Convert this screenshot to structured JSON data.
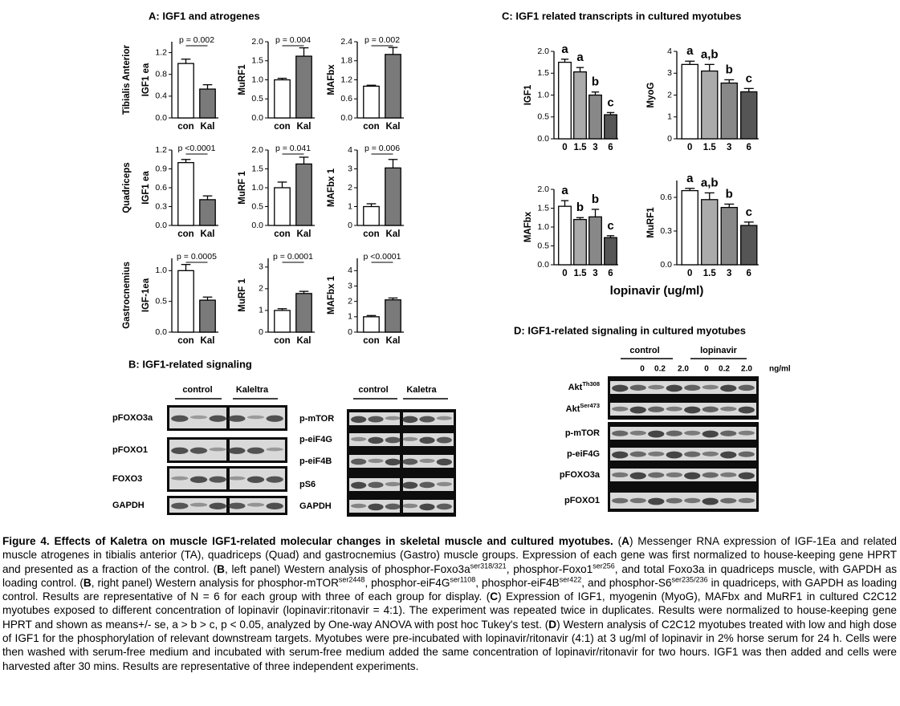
{
  "figure": {
    "panel_a": {
      "title": "A: IGF1 and atrogenes",
      "row_labels": [
        "Tibialis Anterior",
        "Quadriceps",
        "Gastrocnemius"
      ]
    },
    "panel_b": {
      "title": "B: IGF1-related signaling",
      "left": {
        "groups": [
          "control",
          "Kaleltra"
        ],
        "rows": [
          "pFOXO3a",
          "pFOXO1",
          "FOXO3",
          "GAPDH"
        ]
      },
      "right": {
        "groups": [
          "control",
          "Kaletra"
        ],
        "rows": [
          "p-mTOR",
          "p-eiF4G",
          "p-eiF4B",
          "pS6",
          "GAPDH"
        ]
      }
    },
    "panel_c": {
      "title": "C: IGF1 related transcripts in cultured myotubes",
      "x_label": "lopinavir (ug/ml)"
    },
    "panel_d": {
      "title": "D: IGF1-related signaling in cultured myotubes",
      "groups": [
        "control",
        "lopinavir"
      ],
      "doses": [
        "0",
        "0.2",
        "2.0",
        "0",
        "0.2",
        "2.0"
      ],
      "unit": "ng/ml",
      "rows": [
        {
          "text": "Akt",
          "sup": "Th308"
        },
        {
          "text": "Akt",
          "sup": "Ser473"
        },
        {
          "text": "p-mTOR"
        },
        {
          "text": "p-eiF4G"
        },
        {
          "text": "pFOXO3a"
        },
        {
          "text": "pFOXO1"
        }
      ]
    }
  },
  "chart_data": [
    {
      "type": "bar",
      "y_label": "IGF1 ea",
      "categories": [
        "con",
        "Kal"
      ],
      "values": [
        1.0,
        0.53
      ],
      "errors": [
        0.08,
        0.08
      ],
      "colors": [
        "#ffffff",
        "#7a7a7a"
      ],
      "ylim": [
        0,
        1.4
      ],
      "yticks": [
        {
          "value": 0,
          "label": "0.0"
        },
        0.4,
        0.8,
        1.2
      ],
      "annotation": "p = 0.002"
    },
    {
      "type": "bar",
      "y_label": "MuRF1",
      "categories": [
        "con",
        "Kal"
      ],
      "values": [
        1.0,
        1.62
      ],
      "errors": [
        0.04,
        0.22
      ],
      "colors": [
        "#ffffff",
        "#7a7a7a"
      ],
      "ylim": [
        0,
        2.0
      ],
      "yticks": [
        {
          "value": 0,
          "label": "0.0"
        },
        0.5,
        {
          "value": 1,
          "label": "1.0"
        },
        1.5,
        {
          "value": 2,
          "label": "2.0"
        }
      ],
      "annotation": "p = 0.004"
    },
    {
      "type": "bar",
      "y_label": "MAFbx",
      "categories": [
        "con",
        "Kal"
      ],
      "values": [
        1.0,
        2.0
      ],
      "errors": [
        0.03,
        0.22
      ],
      "colors": [
        "#ffffff",
        "#7a7a7a"
      ],
      "ylim": [
        0,
        2.4
      ],
      "yticks": [
        {
          "value": 0,
          "label": "0.0"
        },
        0.6,
        1.2,
        1.8,
        2.4
      ],
      "annotation": "p = 0.002"
    },
    {
      "type": "bar",
      "y_label": "IGF1 ea",
      "categories": [
        "con",
        "Kal"
      ],
      "values": [
        1.0,
        0.41
      ],
      "errors": [
        0.05,
        0.06
      ],
      "colors": [
        "#ffffff",
        "#7a7a7a"
      ],
      "ylim": [
        0,
        1.2
      ],
      "yticks": [
        {
          "value": 0,
          "label": "0.0"
        },
        0.3,
        0.6,
        0.9,
        1.2
      ],
      "annotation": "p <0.0001"
    },
    {
      "type": "bar",
      "y_label": "MuRF 1",
      "categories": [
        "con",
        "Kal"
      ],
      "values": [
        1.0,
        1.63
      ],
      "errors": [
        0.15,
        0.18
      ],
      "colors": [
        "#ffffff",
        "#7a7a7a"
      ],
      "ylim": [
        0,
        2.0
      ],
      "yticks": [
        {
          "value": 0,
          "label": "0.0"
        },
        0.5,
        {
          "value": 1,
          "label": "1.0"
        },
        1.5,
        {
          "value": 2,
          "label": "2.0"
        }
      ],
      "annotation": "p = 0.041"
    },
    {
      "type": "bar",
      "y_label": "MAFbx 1",
      "categories": [
        "con",
        "Kal"
      ],
      "values": [
        1.0,
        3.05
      ],
      "errors": [
        0.15,
        0.45
      ],
      "colors": [
        "#ffffff",
        "#7a7a7a"
      ],
      "ylim": [
        0,
        4
      ],
      "yticks": [
        0,
        1,
        2,
        3,
        4
      ],
      "annotation": "p = 0.006"
    },
    {
      "type": "bar",
      "y_label": "IGF-1ea",
      "categories": [
        "con",
        "Kal"
      ],
      "values": [
        1.0,
        0.52
      ],
      "errors": [
        0.1,
        0.05
      ],
      "colors": [
        "#ffffff",
        "#7a7a7a"
      ],
      "ylim": [
        0,
        1.2
      ],
      "yticks": [
        {
          "value": 0,
          "label": "0.0"
        },
        0.5,
        {
          "value": 1,
          "label": "1.0"
        }
      ],
      "annotation": "p = 0.0005"
    },
    {
      "type": "bar",
      "y_label": "MuRF 1",
      "categories": [
        "con",
        "Kal"
      ],
      "values": [
        1.0,
        1.78
      ],
      "errors": [
        0.08,
        0.1
      ],
      "colors": [
        "#ffffff",
        "#7a7a7a"
      ],
      "ylim": [
        0,
        3.4
      ],
      "yticks": [
        0,
        1,
        2,
        3
      ],
      "annotation": "p = 0.0001"
    },
    {
      "type": "bar",
      "y_label": "MAFbx 1",
      "categories": [
        "con",
        "Kal"
      ],
      "values": [
        1.0,
        2.1
      ],
      "errors": [
        0.08,
        0.12
      ],
      "colors": [
        "#ffffff",
        "#7a7a7a"
      ],
      "ylim": [
        0,
        4.8
      ],
      "yticks": [
        0,
        1,
        2,
        3,
        4
      ],
      "annotation": "p <0.0001"
    },
    {
      "type": "bar",
      "y_label": "IGF1",
      "categories": [
        "0",
        "1.5",
        "3",
        "6"
      ],
      "values": [
        1.75,
        1.53,
        1.0,
        0.55
      ],
      "errors": [
        0.07,
        0.1,
        0.07,
        0.05
      ],
      "colors": [
        "#ffffff",
        "#ababab",
        "#888888",
        "#555555"
      ],
      "ylim": [
        0,
        2.0
      ],
      "yticks": [
        {
          "value": 0,
          "label": "0.0"
        },
        0.5,
        {
          "value": 1,
          "label": "1.0"
        },
        1.5,
        {
          "value": 2,
          "label": "2.0"
        }
      ],
      "letters": [
        "a",
        "a",
        "b",
        "c"
      ]
    },
    {
      "type": "bar",
      "y_label": "MyoG",
      "categories": [
        "0",
        "1.5",
        "3",
        "6"
      ],
      "values": [
        3.4,
        3.1,
        2.55,
        2.15
      ],
      "errors": [
        0.15,
        0.3,
        0.15,
        0.15
      ],
      "colors": [
        "#ffffff",
        "#ababab",
        "#888888",
        "#555555"
      ],
      "ylim": [
        0,
        4
      ],
      "yticks": [
        0,
        1,
        2,
        3,
        4
      ],
      "letters": [
        "a",
        "a,b",
        "b",
        "c"
      ]
    },
    {
      "type": "bar",
      "y_label": "MAFbx",
      "categories": [
        "0",
        "1.5",
        "3",
        "6"
      ],
      "values": [
        1.55,
        1.2,
        1.27,
        0.72
      ],
      "errors": [
        0.15,
        0.05,
        0.2,
        0.05
      ],
      "colors": [
        "#ffffff",
        "#ababab",
        "#888888",
        "#555555"
      ],
      "ylim": [
        0,
        2.0
      ],
      "yticks": [
        {
          "value": 0,
          "label": "0.0"
        },
        0.5,
        {
          "value": 1,
          "label": "1.0"
        },
        1.5,
        {
          "value": 2,
          "label": "2.0"
        }
      ],
      "letters": [
        "a",
        "b",
        "b",
        "c"
      ]
    },
    {
      "type": "bar",
      "y_label": "MuRF1",
      "categories": [
        "0",
        "1.5",
        "3",
        "6"
      ],
      "values": [
        0.66,
        0.58,
        0.51,
        0.35
      ],
      "errors": [
        0.02,
        0.06,
        0.03,
        0.03
      ],
      "colors": [
        "#ffffff",
        "#ababab",
        "#888888",
        "#555555"
      ],
      "ylim": [
        0,
        0.75
      ],
      "yticks": [
        {
          "value": 0,
          "label": "0.0"
        },
        0.3,
        0.6
      ],
      "letters": [
        "a",
        "a,b",
        "b",
        "c"
      ]
    }
  ],
  "caption": [
    {
      "text": "Figure 4. Effects of Kaletra on muscle IGF1-related molecular changes in skeletal muscle and cultured myotubes.",
      "style": "bold"
    },
    {
      "text": " ("
    },
    {
      "text": "A",
      "style": "bold"
    },
    {
      "text": ") Messenger RNA expression of IGF-1Ea and related muscle atrogenes in tibialis anterior (TA), quadriceps (Quad) and gastrocnemius (Gastro) muscle groups. Expression of each gene was first normalized to house-keeping gene HPRT and presented as a fraction of the control. ("
    },
    {
      "text": "B",
      "style": "bold"
    },
    {
      "text": ", left panel) Western analysis of phosphor-Foxo3a"
    },
    {
      "text": "ser318/321",
      "style": "sup"
    },
    {
      "text": ", phosphor-Foxo1"
    },
    {
      "text": "ser256",
      "style": "sup"
    },
    {
      "text": ", and total Foxo3a in quadriceps muscle, with GAPDH as loading control. ("
    },
    {
      "text": "B",
      "style": "bold"
    },
    {
      "text": ", right panel) Western analysis for phosphor-mTOR"
    },
    {
      "text": "ser2448",
      "style": "sup"
    },
    {
      "text": ", phosphor-eiF4G"
    },
    {
      "text": "ser1108",
      "style": "sup"
    },
    {
      "text": ", phosphor-eiF4B"
    },
    {
      "text": "ser422",
      "style": "sup"
    },
    {
      "text": ", and phosphor-S6"
    },
    {
      "text": "ser235/236",
      "style": "sup"
    },
    {
      "text": " in quadriceps, with GAPDH as loading control. Results are representative of N = 6 for each group with three of each group for display. ("
    },
    {
      "text": "C",
      "style": "bold"
    },
    {
      "text": ") Expression of IGF1, myogenin (MyoG), MAFbx and MuRF1 in cultured C2C12 myotubes exposed to different concentration of lopinavir (lopinavir:ritonavir = 4:1). The experiment was repeated twice in duplicates. Results were normalized to house-keeping gene HPRT and shown as means+/- se, a > b > c, p < 0.05, analyzed by One-way ANOVA with post hoc Tukey's test. ("
    },
    {
      "text": "D",
      "style": "bold"
    },
    {
      "text": ") Western analysis of C2C12 myotubes treated with low and high dose of IGF1 for the phosphorylation of relevant downstream targets. Myotubes were pre-incubated with lopinavir/ritonavir (4:1) at 3 ug/ml of lopinavir in 2% horse serum for 24 h. Cells were then washed with serum-free medium and incubated with serum-free medium added the same concentration of lopinavir/ritonavir for two hours. IGF1 was then added and cells were harvested after 30 mins. Results are representative of three independent experiments."
    }
  ]
}
